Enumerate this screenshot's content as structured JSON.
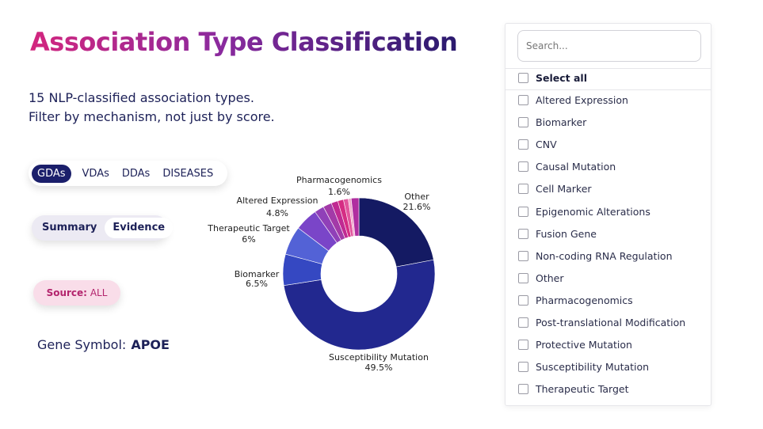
{
  "header": {
    "title": "Association Type Classification",
    "subtitle_line1": "15 NLP-classified association types.",
    "subtitle_line2": "Filter by mechanism, not just by score."
  },
  "tabs": [
    {
      "label": "GDAs",
      "active": true
    },
    {
      "label": "VDAs",
      "active": false
    },
    {
      "label": "DDAs",
      "active": false
    },
    {
      "label": "DISEASES",
      "active": false
    }
  ],
  "view_toggle": [
    {
      "label": "Summary",
      "active": false
    },
    {
      "label": "Evidence",
      "active": true
    }
  ],
  "source": {
    "label": "Source:",
    "value": "ALL"
  },
  "gene": {
    "label": "Gene Symbol:",
    "value": "APOE"
  },
  "chart_data": {
    "type": "pie",
    "donut": true,
    "title": "",
    "categories": [
      "Susceptibility Mutation",
      "Biomarker",
      "Therapeutic Target",
      "Altered Expression",
      "Pharmacogenomics",
      "Other"
    ],
    "values": [
      49.5,
      6.5,
      6.0,
      4.8,
      1.6,
      21.6
    ],
    "labels": [
      "49.5%",
      "6.5%",
      "6%",
      "4.8%",
      "1.6%",
      "21.6%"
    ],
    "extra_small_slices": [
      2.0,
      1.8,
      1.4,
      1.2,
      1.0,
      0.6
    ],
    "colors": [
      "#22288f",
      "#3548c2",
      "#5362d6",
      "#7a45c8",
      "#b02ea0",
      "#141a63"
    ],
    "small_colors": [
      "#9040b8",
      "#a33aa8",
      "#c02a92",
      "#d52d84",
      "#e2559d",
      "#f0a8cc"
    ]
  },
  "filter_panel": {
    "search_placeholder": "Search...",
    "select_all": "Select all",
    "options": [
      "Altered Expression",
      "Biomarker",
      "CNV",
      "Causal Mutation",
      "Cell Marker",
      "Epigenomic Alterations",
      "Fusion Gene",
      "Non-coding RNA Regulation",
      "Other",
      "Pharmacogenomics",
      "Post-translational Modification",
      "Protective Mutation",
      "Susceptibility Mutation",
      "Therapeutic Target"
    ]
  }
}
